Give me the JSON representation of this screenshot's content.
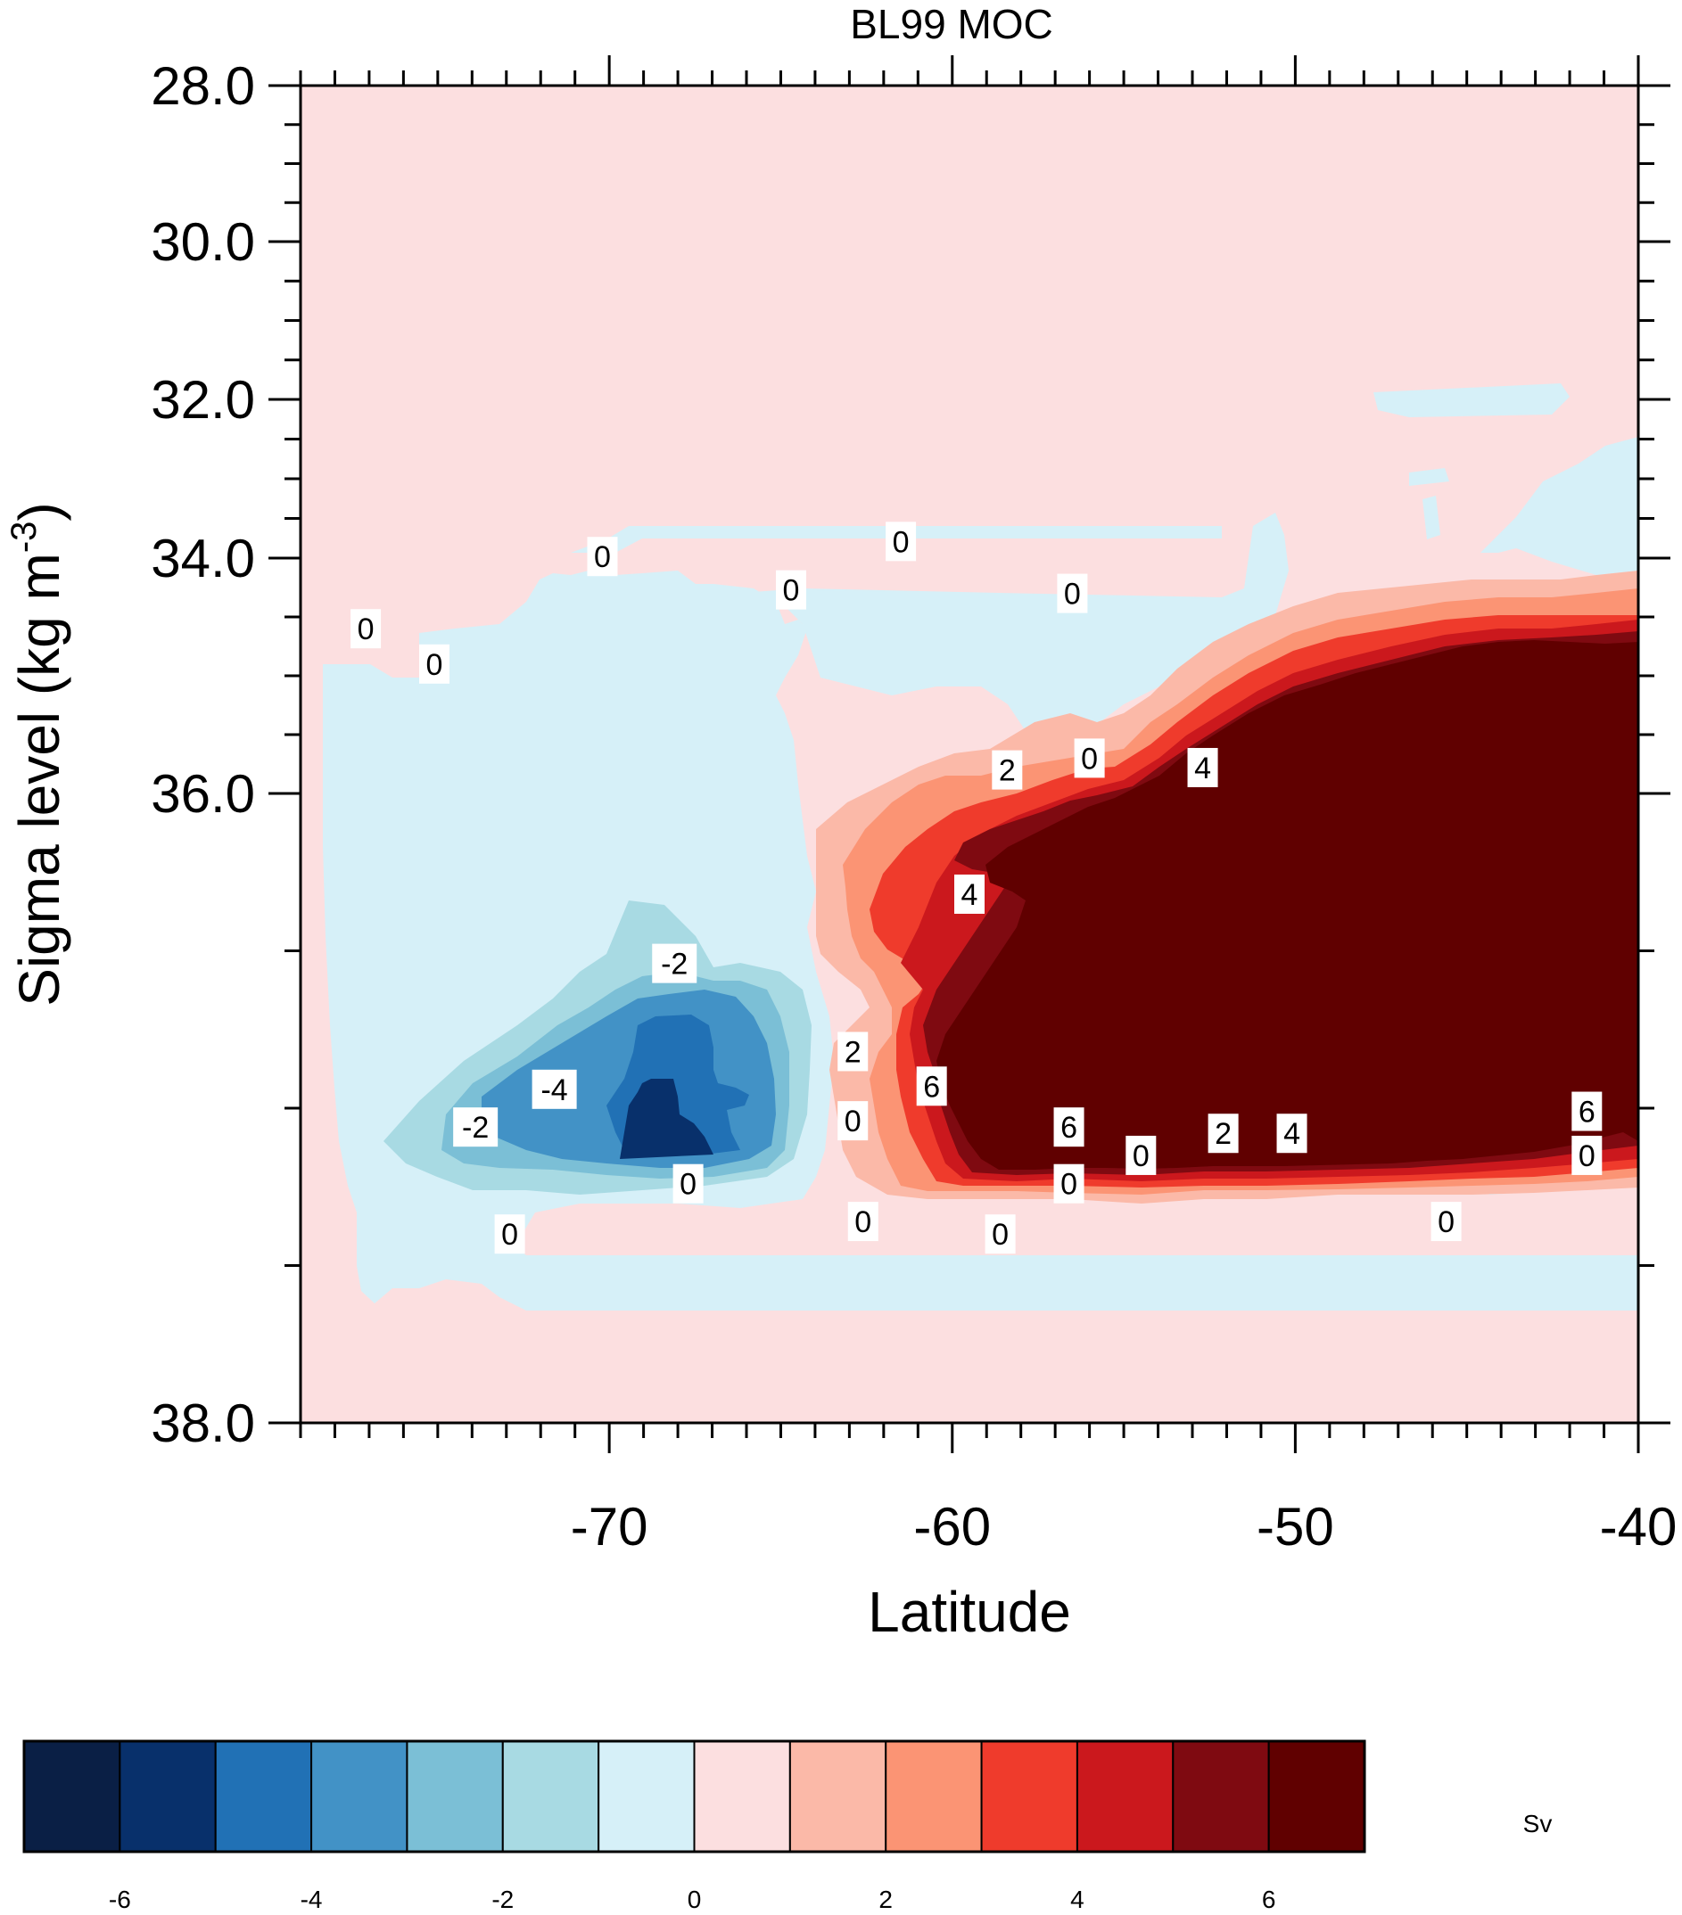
{
  "chart_data": {
    "type": "contour",
    "title": "BL99 MOC",
    "xlabel": "Latitude",
    "ylabel_main": "Sigma level (kg m",
    "ylabel_sup": "-3",
    "ylabel_close": ")",
    "xlim": [
      -79,
      -40
    ],
    "ylim": [
      28.0,
      38.0
    ],
    "y_axis_scale": "nonlinear (stretched toward high density)",
    "x_ticks": [
      "-70",
      "-60",
      "-50",
      "-40"
    ],
    "y_ticks": [
      "28.0",
      "30.0",
      "32.0",
      "34.0",
      "36.0",
      "38.0"
    ],
    "units": "Sv",
    "colorbar": {
      "levels": [
        -7,
        -6,
        -5,
        -4,
        -3,
        -2,
        -1,
        0,
        1,
        2,
        3,
        4,
        5,
        6,
        7
      ],
      "tick_labels": [
        "-6",
        "-4",
        "-2",
        "0",
        "2",
        "4",
        "6"
      ],
      "tick_values": [
        -6,
        -4,
        -2,
        0,
        2,
        4,
        6
      ],
      "colors": [
        "#0a1f45",
        "#08306b",
        "#2171b5",
        "#4292c6",
        "#7bbfd6",
        "#a8dae3",
        "#d6f0f8",
        "#fcdfe0",
        "#fbb9a8",
        "#fb9474",
        "#ef3b2c",
        "#cb181d",
        "#7f0a11",
        "#600000"
      ]
    },
    "contour_labels": [
      {
        "text": "0",
        "lat": -70.2,
        "sigma": 33.98
      },
      {
        "text": "0",
        "lat": -61.5,
        "sigma": 33.79
      },
      {
        "text": "0",
        "lat": -77.1,
        "sigma": 34.6
      },
      {
        "text": "0",
        "lat": -75.1,
        "sigma": 34.9
      },
      {
        "text": "0",
        "lat": -64.7,
        "sigma": 34.27
      },
      {
        "text": "0",
        "lat": -56.5,
        "sigma": 34.3
      },
      {
        "text": "0",
        "lat": -56.0,
        "sigma": 35.7
      },
      {
        "text": "2",
        "lat": -58.4,
        "sigma": 35.8
      },
      {
        "text": "4",
        "lat": -52.7,
        "sigma": 35.78
      },
      {
        "text": "4",
        "lat": -59.5,
        "sigma": 36.32
      },
      {
        "text": "-2",
        "lat": -68.1,
        "sigma": 36.54
      },
      {
        "text": "2",
        "lat": -62.9,
        "sigma": 36.82
      },
      {
        "text": "6",
        "lat": -60.6,
        "sigma": 36.93
      },
      {
        "text": "-4",
        "lat": -71.6,
        "sigma": 36.94
      },
      {
        "text": "-2",
        "lat": -73.9,
        "sigma": 37.06
      },
      {
        "text": "0",
        "lat": -62.9,
        "sigma": 37.04
      },
      {
        "text": "6",
        "lat": -56.6,
        "sigma": 37.06
      },
      {
        "text": "2",
        "lat": -52.1,
        "sigma": 37.08
      },
      {
        "text": "4",
        "lat": -50.1,
        "sigma": 37.08
      },
      {
        "text": "6",
        "lat": -41.5,
        "sigma": 37.01
      },
      {
        "text": "0",
        "lat": -54.5,
        "sigma": 37.15
      },
      {
        "text": "0",
        "lat": -41.5,
        "sigma": 37.15
      },
      {
        "text": "0",
        "lat": -67.7,
        "sigma": 37.24
      },
      {
        "text": "0",
        "lat": -56.6,
        "sigma": 37.24
      },
      {
        "text": "0",
        "lat": -62.6,
        "sigma": 37.36
      },
      {
        "text": "0",
        "lat": -72.9,
        "sigma": 37.4
      },
      {
        "text": "0",
        "lat": -58.6,
        "sigma": 37.4
      },
      {
        "text": "0",
        "lat": -45.6,
        "sigma": 37.36
      }
    ]
  }
}
